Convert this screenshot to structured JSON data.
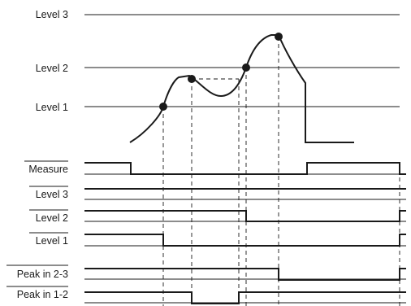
{
  "levels": {
    "level3": "Level 3",
    "level2": "Level 2",
    "level1": "Level 1"
  },
  "signals": [
    {
      "id": "measure",
      "label": "Measure",
      "overbar": true
    },
    {
      "id": "level3",
      "label": "Level 3",
      "overbar": true
    },
    {
      "id": "level2",
      "label": "Level 2",
      "overbar": true
    },
    {
      "id": "level1",
      "label": "Level 1",
      "overbar": true
    },
    {
      "id": "peak23",
      "label": "Peak in 2-3",
      "overbar": true
    },
    {
      "id": "peak12",
      "label": "Peak in 1-2",
      "overbar": true
    }
  ],
  "colors": {
    "ink": "#1a1a1a",
    "background": "#ffffff"
  }
}
